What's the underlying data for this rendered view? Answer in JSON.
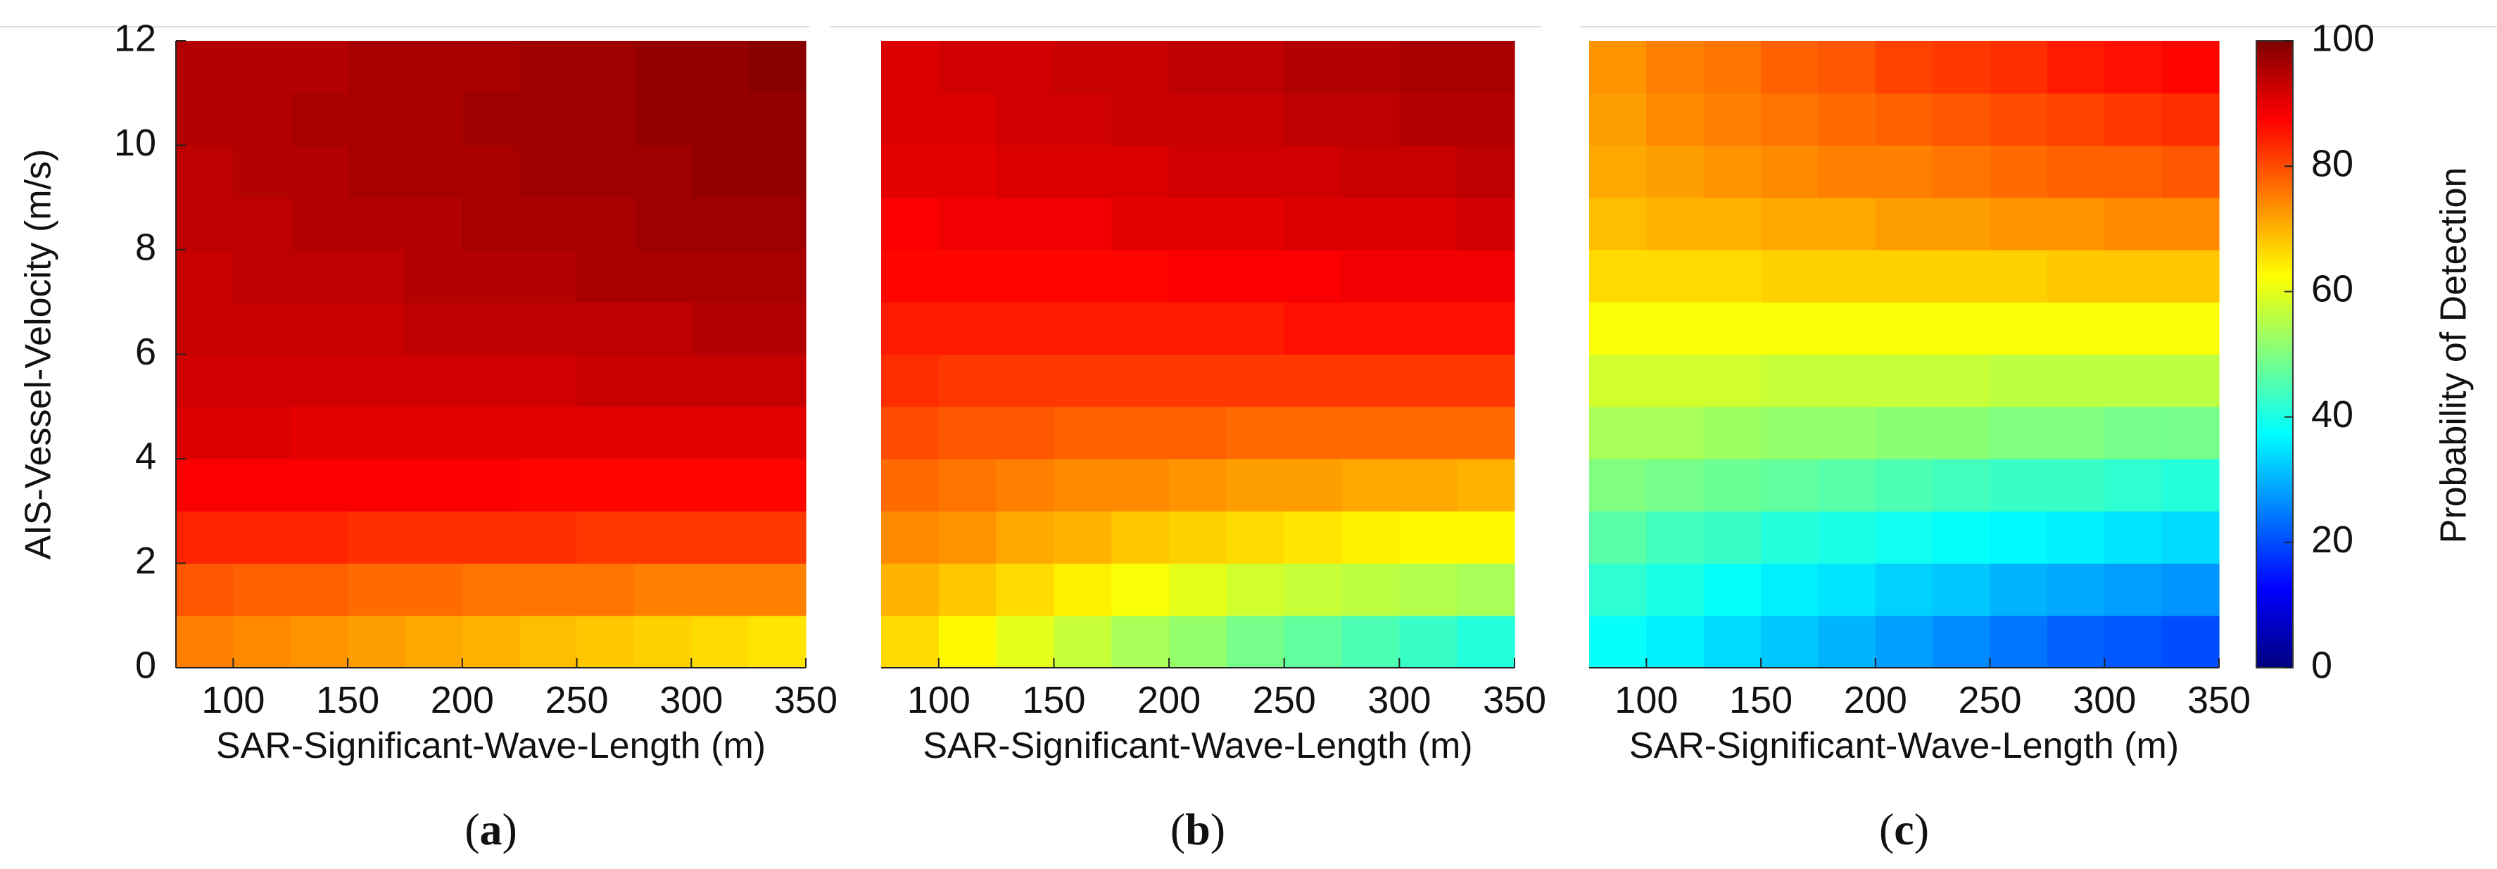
{
  "chart_data": {
    "type": "heatmap",
    "colorbar": {
      "label": "Probability of Detection",
      "range": [
        0,
        100
      ],
      "ticks": [
        0,
        20,
        40,
        60,
        80,
        100
      ],
      "colormap": "jet"
    },
    "x_cell_centers_m": [
      78,
      106,
      133,
      161,
      189,
      217,
      244,
      272,
      300,
      328,
      350
    ],
    "y_cell_centers_ms": [
      0.5,
      1.5,
      2.5,
      3.5,
      4.5,
      5.5,
      6.5,
      7.5,
      8.5,
      9.5,
      10.5,
      11.5
    ],
    "panels": [
      {
        "label": "a",
        "label_text": "(a)",
        "xlabel": "SAR-Significant-Wave-Length (m)",
        "ylabel": "AIS-Vessel-Velocity (m/s)",
        "xlim": [
          75,
          350
        ],
        "ylim": [
          0,
          12
        ],
        "xticks": [
          100,
          150,
          200,
          250,
          300,
          350
        ],
        "yticks": [
          0,
          2,
          4,
          6,
          8,
          10,
          12
        ],
        "show_ylabel": true,
        "show_yticks": true,
        "values": [
          [
            75,
            74,
            73,
            72,
            71,
            70,
            69,
            68,
            67,
            66,
            65
          ],
          [
            79,
            78,
            78,
            77,
            77,
            76,
            76,
            76,
            75,
            75,
            75
          ],
          [
            84,
            84,
            84,
            83,
            83,
            83,
            83,
            82,
            82,
            82,
            82
          ],
          [
            88,
            88,
            88,
            88,
            88,
            88,
            87,
            87,
            87,
            87,
            87
          ],
          [
            91,
            91,
            90,
            90,
            90,
            90,
            90,
            90,
            90,
            90,
            90
          ],
          [
            92,
            92,
            92,
            92,
            92,
            92,
            92,
            93,
            93,
            93,
            93
          ],
          [
            93,
            93,
            93,
            93,
            94,
            94,
            94,
            94,
            94,
            95,
            95
          ],
          [
            93,
            94,
            94,
            94,
            95,
            95,
            95,
            96,
            96,
            96,
            96
          ],
          [
            94,
            94,
            95,
            95,
            95,
            96,
            96,
            96,
            97,
            97,
            97
          ],
          [
            94,
            95,
            95,
            96,
            96,
            96,
            97,
            97,
            97,
            98,
            98
          ],
          [
            95,
            95,
            96,
            96,
            96,
            97,
            97,
            97,
            98,
            98,
            98
          ],
          [
            95,
            95,
            95,
            96,
            96,
            96,
            97,
            97,
            98,
            98,
            99
          ]
        ]
      },
      {
        "label": "b",
        "label_text": "(b)",
        "xlabel": "SAR-Significant-Wave-Length (m)",
        "ylabel": "",
        "xlim": [
          75,
          350
        ],
        "ylim": [
          0,
          12
        ],
        "xticks": [
          100,
          150,
          200,
          250,
          300,
          350
        ],
        "yticks": [],
        "show_ylabel": false,
        "show_yticks": false,
        "values": [
          [
            66,
            63,
            60,
            57,
            54,
            52,
            49,
            47,
            45,
            43,
            41
          ],
          [
            70,
            68,
            66,
            64,
            62,
            60,
            58,
            57,
            56,
            55,
            54
          ],
          [
            74,
            73,
            71,
            70,
            68,
            67,
            66,
            65,
            64,
            63,
            63
          ],
          [
            77,
            76,
            75,
            74,
            74,
            73,
            72,
            72,
            71,
            71,
            70
          ],
          [
            80,
            79,
            79,
            78,
            78,
            78,
            77,
            77,
            77,
            77,
            77
          ],
          [
            83,
            82,
            82,
            82,
            82,
            82,
            82,
            82,
            82,
            82,
            82
          ],
          [
            85,
            85,
            85,
            85,
            85,
            85,
            85,
            86,
            86,
            86,
            86
          ],
          [
            87,
            87,
            87,
            87,
            87,
            88,
            88,
            88,
            89,
            89,
            89
          ],
          [
            88,
            89,
            89,
            89,
            90,
            90,
            90,
            91,
            91,
            91,
            92
          ],
          [
            90,
            90,
            91,
            91,
            91,
            92,
            92,
            92,
            93,
            93,
            94
          ],
          [
            91,
            91,
            92,
            92,
            93,
            93,
            93,
            94,
            94,
            95,
            95
          ],
          [
            91,
            92,
            92,
            93,
            93,
            94,
            94,
            95,
            95,
            96,
            96
          ]
        ]
      },
      {
        "label": "c",
        "label_text": "(c)",
        "xlabel": "SAR-Significant-Wave-Length (m)",
        "ylabel": "",
        "xlim": [
          75,
          350
        ],
        "ylim": [
          0,
          12
        ],
        "xticks": [
          100,
          150,
          200,
          250,
          300,
          350
        ],
        "yticks": [],
        "show_ylabel": false,
        "show_yticks": false,
        "values": [
          [
            38,
            36,
            34,
            32,
            30,
            28,
            26,
            24,
            22,
            21,
            20
          ],
          [
            42,
            40,
            38,
            36,
            35,
            33,
            32,
            30,
            29,
            28,
            27
          ],
          [
            46,
            44,
            43,
            41,
            40,
            39,
            38,
            37,
            36,
            35,
            34
          ],
          [
            50,
            49,
            48,
            47,
            46,
            45,
            44,
            43,
            43,
            42,
            41
          ],
          [
            54,
            54,
            53,
            52,
            52,
            51,
            51,
            50,
            50,
            49,
            49
          ],
          [
            58,
            58,
            58,
            57,
            57,
            57,
            57,
            56,
            56,
            56,
            56
          ],
          [
            62,
            62,
            62,
            62,
            62,
            62,
            62,
            62,
            62,
            62,
            62
          ],
          [
            66,
            66,
            66,
            67,
            67,
            67,
            67,
            67,
            68,
            68,
            68
          ],
          [
            69,
            70,
            70,
            71,
            71,
            72,
            72,
            73,
            73,
            74,
            74
          ],
          [
            71,
            72,
            73,
            74,
            75,
            75,
            76,
            77,
            78,
            78,
            79
          ],
          [
            72,
            74,
            75,
            76,
            77,
            78,
            79,
            80,
            81,
            82,
            83
          ],
          [
            73,
            75,
            76,
            78,
            79,
            81,
            82,
            83,
            85,
            86,
            87
          ]
        ]
      }
    ]
  }
}
